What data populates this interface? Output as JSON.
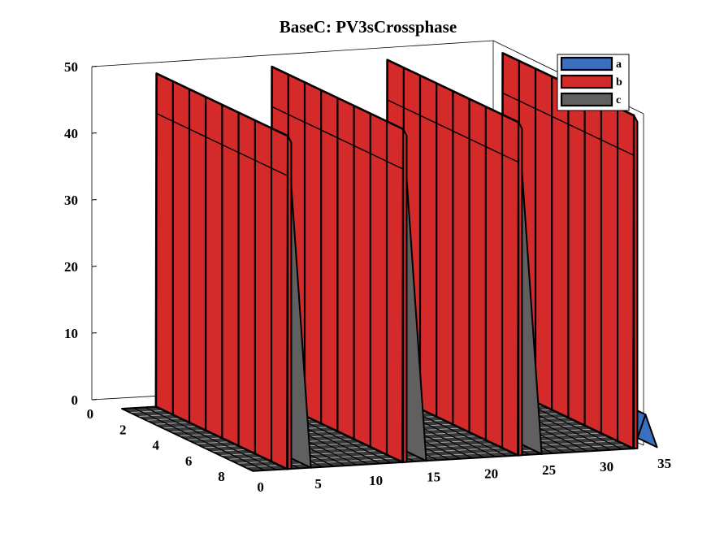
{
  "chart_data": {
    "type": "surface3d",
    "title": "BaseC: PV3sCrossphase",
    "x_ticks": [
      "0",
      "5",
      "10",
      "15",
      "20",
      "25",
      "30",
      "35"
    ],
    "y_ticks": [
      "0",
      "2",
      "4",
      "6",
      "8"
    ],
    "z_ticks": [
      "0",
      "10",
      "20",
      "30",
      "40",
      "50"
    ],
    "xlim": [
      0,
      35
    ],
    "ylim": [
      0,
      9
    ],
    "zlim": [
      0,
      50
    ],
    "grid": false,
    "legend_position": "top-right",
    "series": [
      {
        "name": "a",
        "color": "#3b6fbf",
        "description_values": "small triangular bumps (~5) at x = 4, 14, 24, 34",
        "peaks_x": [
          4,
          14,
          24,
          34
        ],
        "peak_value": 5
      },
      {
        "name": "b",
        "color": "#d42a2a",
        "description_values": "tall walls (~50) at x = 3, 13, 23, 33",
        "peaks_x": [
          3,
          13,
          23,
          33
        ],
        "peak_value": 50
      },
      {
        "name": "c",
        "color": "#606060",
        "description_values": "tall walls (~50) at x = 5, 15, 25",
        "peaks_x": [
          5,
          15,
          25
        ],
        "peak_value": 50
      }
    ]
  }
}
